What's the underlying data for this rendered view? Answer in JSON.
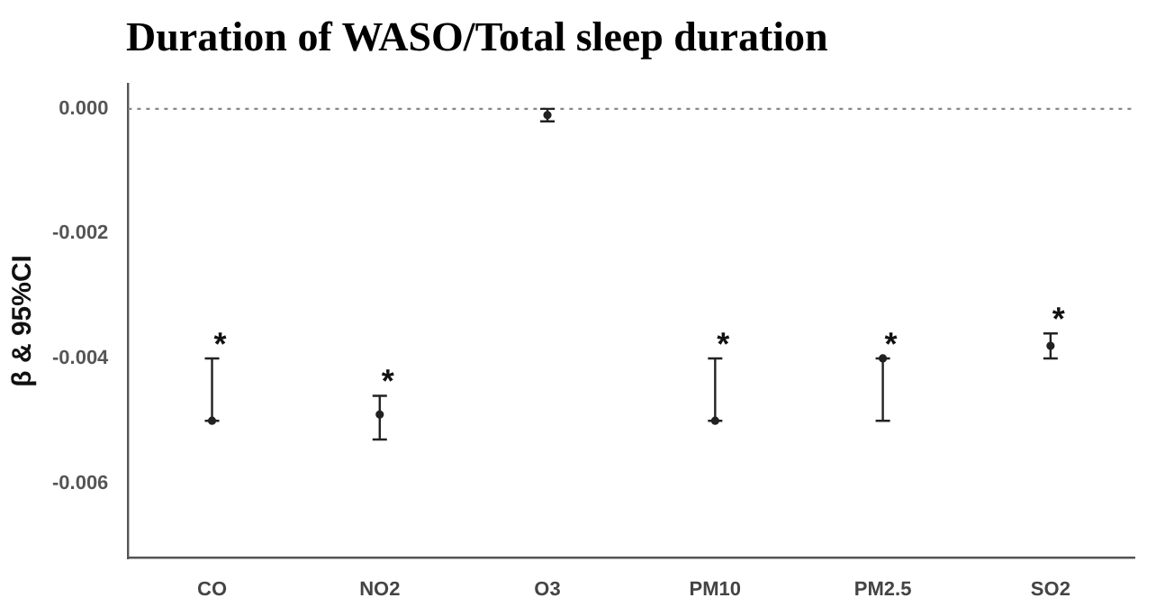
{
  "chart_data": {
    "type": "scatter",
    "title": "Duration of WASO/Total sleep duration",
    "ylabel": "β & 95%CI",
    "categories": [
      "CO",
      "NO2",
      "O3",
      "PM10",
      "PM2.5",
      "SO2"
    ],
    "series": [
      {
        "color": "#222222",
        "values": [
          -0.005,
          -0.0049,
          -0.0001,
          -0.005,
          -0.004,
          -0.0038
        ],
        "errors": [
          [
            -0.005,
            -0.004
          ],
          [
            -0.0053,
            -0.0046
          ],
          [
            -0.0002,
            0
          ],
          [
            -0.005,
            -0.004
          ],
          [
            -0.005,
            -0.004
          ],
          [
            -0.004,
            -0.0036
          ]
        ]
      }
    ],
    "ylim": [
      -0.0072,
      0.0004
    ],
    "yticks": [
      {
        "value": 0,
        "label": "0.000"
      },
      {
        "value": -0.002,
        "label": "-0.002"
      },
      {
        "value": -0.004,
        "label": "-0.004"
      },
      {
        "value": -0.006,
        "label": "-0.006"
      }
    ],
    "ref_lines": [
      {
        "axis": "y",
        "value": 0,
        "color": "#888888",
        "line_style": "dotted"
      }
    ],
    "annotations": [
      {
        "text": "*",
        "x": "CO",
        "y": -0.004
      },
      {
        "text": "*",
        "x": "NO2",
        "y": -0.0046
      },
      {
        "text": "*",
        "x": "PM10",
        "y": -0.004
      },
      {
        "text": "*",
        "x": "PM2.5",
        "y": -0.004
      },
      {
        "text": "*",
        "x": "SO2",
        "y": -0.0036
      }
    ],
    "grid": false,
    "legend": false,
    "marker": "circle"
  }
}
